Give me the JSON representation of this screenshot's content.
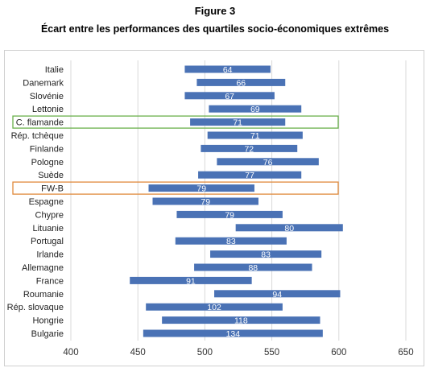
{
  "figure_label": "Figure 3",
  "figure_title": "Écart entre les performances des quartiles socio-économiques extrêmes",
  "colors": {
    "bar": "#4a72b5",
    "highlight_green": "#6ab04c",
    "highlight_orange": "#e08a3c",
    "grid": "#d9d9d9"
  },
  "chart_data": {
    "type": "bar",
    "orientation": "horizontal-floating",
    "title": "Écart entre les performances des quartiles socio-économiques extrêmes",
    "xlim": [
      400,
      650
    ],
    "xticks": [
      400,
      450,
      500,
      550,
      600,
      650
    ],
    "grid": true,
    "categories": [
      "Italie",
      "Danemark",
      "Slovénie",
      "Lettonie",
      "C. flamande",
      "Rép. tchèque",
      "Finlande",
      "Pologne",
      "Suède",
      "FW-B",
      "Espagne",
      "Chypre",
      "Lituanie",
      "Portugal",
      "Irlande",
      "Allemagne",
      "France",
      "Roumanie",
      "Rép. slovaque",
      "Hongrie",
      "Bulgarie"
    ],
    "low": [
      485,
      494,
      485,
      503,
      489,
      502,
      497,
      509,
      495,
      458,
      461,
      479,
      523,
      478,
      504,
      492,
      444,
      507,
      456,
      468,
      454
    ],
    "high": [
      549,
      560,
      552,
      572,
      560,
      573,
      569,
      585,
      572,
      537,
      540,
      558,
      603,
      561,
      587,
      580,
      535,
      601,
      558,
      586,
      588
    ],
    "gap_labels": [
      "64",
      "66",
      "67",
      "69",
      "71",
      "71",
      "72",
      "76",
      "77",
      "79",
      "79",
      "79",
      "80",
      "83",
      "83",
      "88",
      "91",
      "94",
      "102",
      "118",
      "134"
    ],
    "highlighted": [
      "C. flamande",
      "FW-B"
    ]
  }
}
